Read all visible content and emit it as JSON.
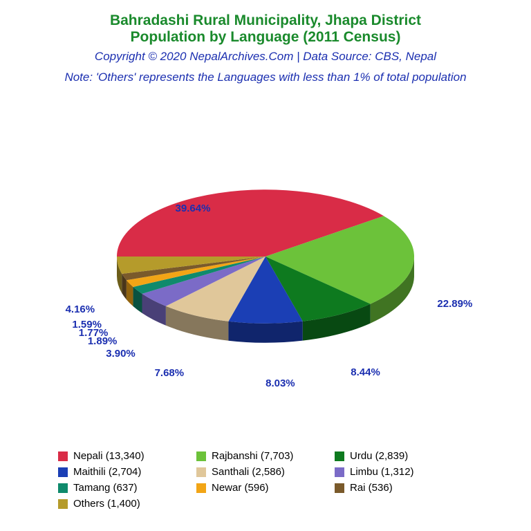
{
  "titles": {
    "line1": "Bahradashi Rural Municipality, Jhapa District",
    "line2": "Population by Language (2011 Census)",
    "copyright": "Copyright © 2020 NepalArchives.Com | Data Source: CBS, Nepal",
    "note": "Note: 'Others' represents the Languages with less than 1% of total population",
    "title_color": "#1a8a2c",
    "copyright_color": "#1b2fb0",
    "note_color": "#1b2fb0"
  },
  "chart": {
    "type": "pie3d",
    "start_angle_deg": 180,
    "label_color": "#1b2fb0",
    "label_fontsize": 15,
    "tilt": 0.45,
    "depth": 28,
    "radius": 215,
    "slices": [
      {
        "name": "Nepali",
        "value": 13340,
        "pct": 39.64,
        "color": "#d92c47"
      },
      {
        "name": "Rajbanshi",
        "value": 7703,
        "pct": 22.89,
        "color": "#6cc23a"
      },
      {
        "name": "Urdu",
        "value": 2839,
        "pct": 8.44,
        "color": "#0e7a1f"
      },
      {
        "name": "Maithili",
        "value": 2704,
        "pct": 8.03,
        "color": "#1b3fb5"
      },
      {
        "name": "Santhali",
        "value": 2586,
        "pct": 7.68,
        "color": "#e0c79a"
      },
      {
        "name": "Limbu",
        "value": 1312,
        "pct": 3.9,
        "color": "#7b6bc7"
      },
      {
        "name": "Tamang",
        "value": 637,
        "pct": 1.89,
        "color": "#0f8a6c"
      },
      {
        "name": "Newar",
        "value": 596,
        "pct": 1.77,
        "color": "#f2a516"
      },
      {
        "name": "Rai",
        "value": 536,
        "pct": 1.59,
        "color": "#7a5a2b"
      },
      {
        "name": "Others",
        "value": 1400,
        "pct": 4.16,
        "color": "#b59b2b"
      }
    ]
  },
  "legend": {
    "items": [
      {
        "label": "Nepali (13,340)",
        "color": "#d92c47"
      },
      {
        "label": "Rajbanshi (7,703)",
        "color": "#6cc23a"
      },
      {
        "label": "Urdu (2,839)",
        "color": "#0e7a1f"
      },
      {
        "label": "Maithili (2,704)",
        "color": "#1b3fb5"
      },
      {
        "label": "Santhali (2,586)",
        "color": "#e0c79a"
      },
      {
        "label": "Limbu (1,312)",
        "color": "#7b6bc7"
      },
      {
        "label": "Tamang (637)",
        "color": "#0f8a6c"
      },
      {
        "label": "Newar (596)",
        "color": "#f2a516"
      },
      {
        "label": "Rai (536)",
        "color": "#7a5a2b"
      },
      {
        "label": "Others (1,400)",
        "color": "#b59b2b"
      }
    ]
  }
}
